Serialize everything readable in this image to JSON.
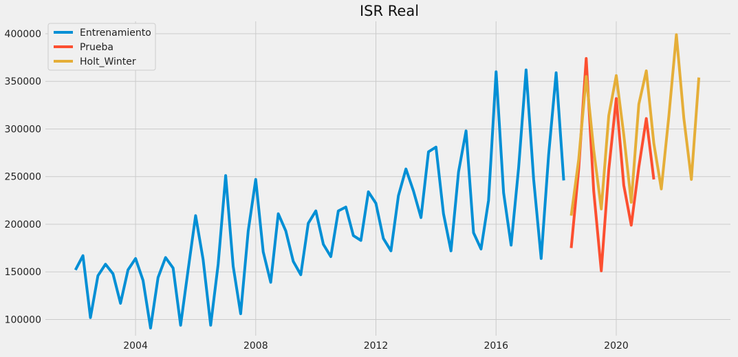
{
  "chart_data": {
    "type": "line",
    "title": "ISR Real",
    "xlabel": "",
    "ylabel": "",
    "xlim": [
      2001.0,
      2023.8
    ],
    "ylim": [
      83000,
      413000
    ],
    "x_ticks": [
      2004,
      2008,
      2012,
      2016,
      2020
    ],
    "y_ticks": [
      100000,
      150000,
      200000,
      250000,
      300000,
      350000,
      400000
    ],
    "grid": true,
    "legend_position": "top-left",
    "background": "#f0f0f0",
    "grid_color": "#cbcbcb",
    "series": [
      {
        "name": "Entrenamiento",
        "color": "#008fd5",
        "points": [
          [
            2002.0,
            152000
          ],
          [
            2002.25,
            167000
          ],
          [
            2002.5,
            102000
          ],
          [
            2002.75,
            146000
          ],
          [
            2003.0,
            158000
          ],
          [
            2003.25,
            148000
          ],
          [
            2003.5,
            117000
          ],
          [
            2003.75,
            152000
          ],
          [
            2004.0,
            164000
          ],
          [
            2004.25,
            141000
          ],
          [
            2004.5,
            91000
          ],
          [
            2004.75,
            144000
          ],
          [
            2005.0,
            165000
          ],
          [
            2005.25,
            154000
          ],
          [
            2005.5,
            94000
          ],
          [
            2005.75,
            152000
          ],
          [
            2006.0,
            209000
          ],
          [
            2006.25,
            163000
          ],
          [
            2006.5,
            94000
          ],
          [
            2006.75,
            158000
          ],
          [
            2007.0,
            251000
          ],
          [
            2007.25,
            156000
          ],
          [
            2007.5,
            106000
          ],
          [
            2007.75,
            193000
          ],
          [
            2008.0,
            247000
          ],
          [
            2008.25,
            171000
          ],
          [
            2008.5,
            139000
          ],
          [
            2008.75,
            211000
          ],
          [
            2009.0,
            193000
          ],
          [
            2009.25,
            161000
          ],
          [
            2009.5,
            147000
          ],
          [
            2009.75,
            201000
          ],
          [
            2010.0,
            214000
          ],
          [
            2010.25,
            179000
          ],
          [
            2010.5,
            166000
          ],
          [
            2010.75,
            214000
          ],
          [
            2011.0,
            218000
          ],
          [
            2011.25,
            188000
          ],
          [
            2011.5,
            183000
          ],
          [
            2011.75,
            234000
          ],
          [
            2012.0,
            222000
          ],
          [
            2012.25,
            185000
          ],
          [
            2012.5,
            172000
          ],
          [
            2012.75,
            230000
          ],
          [
            2013.0,
            258000
          ],
          [
            2013.25,
            235000
          ],
          [
            2013.5,
            207000
          ],
          [
            2013.75,
            276000
          ],
          [
            2014.0,
            281000
          ],
          [
            2014.25,
            211000
          ],
          [
            2014.5,
            172000
          ],
          [
            2014.75,
            255000
          ],
          [
            2015.0,
            298000
          ],
          [
            2015.25,
            191000
          ],
          [
            2015.5,
            174000
          ],
          [
            2015.75,
            225000
          ],
          [
            2016.0,
            360000
          ],
          [
            2016.25,
            233000
          ],
          [
            2016.5,
            178000
          ],
          [
            2016.75,
            259000
          ],
          [
            2017.0,
            362000
          ],
          [
            2017.25,
            247000
          ],
          [
            2017.5,
            164000
          ],
          [
            2017.75,
            273000
          ],
          [
            2018.0,
            359000
          ],
          [
            2018.25,
            246000
          ]
        ]
      },
      {
        "name": "Prueba",
        "color": "#fc4f30",
        "points": [
          [
            2018.5,
            175000
          ],
          [
            2018.75,
            258000
          ],
          [
            2019.0,
            374000
          ],
          [
            2019.25,
            235000
          ],
          [
            2019.5,
            151000
          ],
          [
            2019.75,
            257000
          ],
          [
            2020.0,
            332000
          ],
          [
            2020.25,
            241000
          ],
          [
            2020.5,
            199000
          ],
          [
            2020.75,
            260000
          ],
          [
            2021.0,
            311000
          ],
          [
            2021.25,
            247000
          ]
        ]
      },
      {
        "name": "Holt_Winter",
        "color": "#e5ae38",
        "points": [
          [
            2018.5,
            209000
          ],
          [
            2018.75,
            268000
          ],
          [
            2019.0,
            355000
          ],
          [
            2019.25,
            278000
          ],
          [
            2019.5,
            216000
          ],
          [
            2019.75,
            314000
          ],
          [
            2020.0,
            356000
          ],
          [
            2020.25,
            294000
          ],
          [
            2020.5,
            223000
          ],
          [
            2020.75,
            326000
          ],
          [
            2021.0,
            361000
          ],
          [
            2021.25,
            285000
          ],
          [
            2021.5,
            237000
          ],
          [
            2021.75,
            313000
          ],
          [
            2022.0,
            399000
          ],
          [
            2022.25,
            311000
          ],
          [
            2022.5,
            247000
          ],
          [
            2022.75,
            354000
          ]
        ]
      }
    ]
  }
}
